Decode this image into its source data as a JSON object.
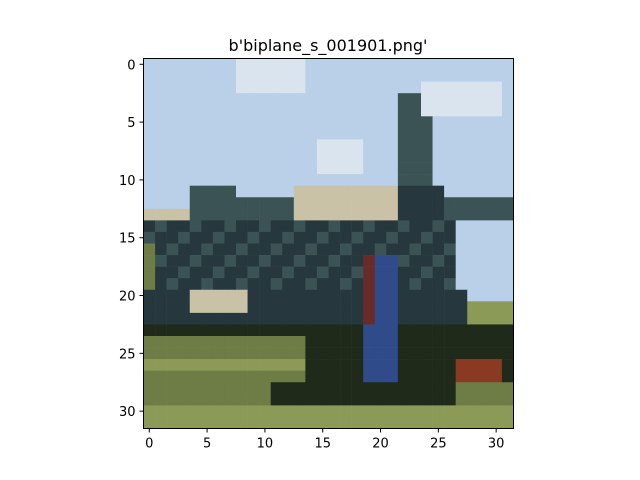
{
  "chart_data": {
    "type": "heatmap",
    "title": "b'biplane_s_001901.png'",
    "xlabel": "",
    "ylabel": "",
    "xlim": [
      -0.5,
      31.5
    ],
    "ylim": [
      31.5,
      -0.5
    ],
    "x_ticks": [
      0,
      5,
      10,
      15,
      20,
      25,
      30
    ],
    "y_ticks": [
      0,
      5,
      10,
      15,
      20,
      25,
      30
    ],
    "grid": false,
    "image": {
      "width": 32,
      "height": 32,
      "description_colors": {
        "sky": "#b9d0e8",
        "cloud": "#d9e4ef",
        "fuselage_dark": "#26383d",
        "fuselage_mid": "#3c5355",
        "wing_light": "#c9c2a6",
        "grass": "#6e7c45",
        "grass_light": "#8c9a57",
        "shadow": "#1f2a1a",
        "person_blue": "#2f4b8a",
        "person_red": "#6b2a2a",
        "rust": "#8a3a22"
      }
    }
  }
}
